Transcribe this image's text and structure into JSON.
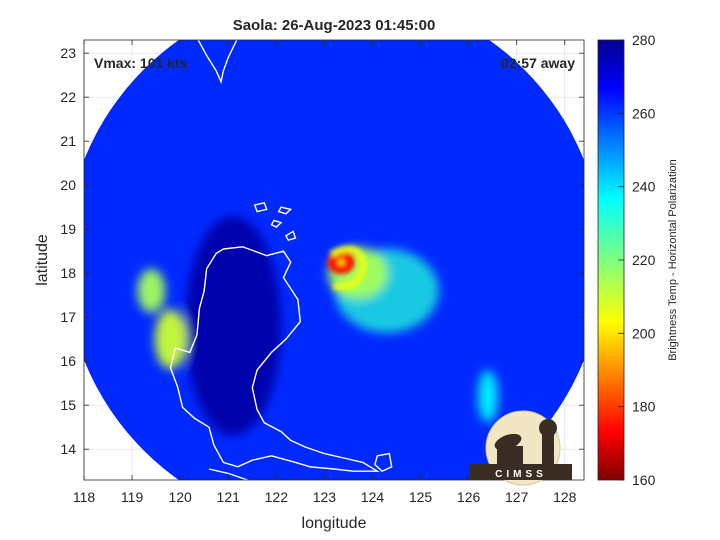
{
  "chart_data": {
    "type": "heatmap",
    "title": "Saola: 26-Aug-2023 01:45:00",
    "xlabel": "longitude",
    "ylabel": "latitude",
    "xlim": [
      118,
      128.4
    ],
    "ylim": [
      13.3,
      23.3
    ],
    "xticks": [
      118,
      119,
      120,
      121,
      122,
      123,
      124,
      125,
      126,
      127,
      128
    ],
    "yticks": [
      14,
      15,
      16,
      17,
      18,
      19,
      20,
      21,
      22,
      23
    ],
    "grid": true,
    "annotations": {
      "vmax": "Vmax: 101 kts",
      "time_away": "02:57 away"
    },
    "colorbar": {
      "label": "Brightness Temp - Horizontal Polarization",
      "range": [
        160,
        280
      ],
      "ticks": [
        160,
        180,
        200,
        220,
        240,
        260,
        280
      ],
      "colormap": "jet"
    },
    "swath": {
      "center": [
        123.2,
        18.3
      ],
      "radius_deg": 5.6
    },
    "storm_center": [
      123.35,
      18.25
    ],
    "features": [
      {
        "name": "eyewall",
        "lon": 123.35,
        "lat": 18.25,
        "value": 175
      },
      {
        "name": "inner-rainband",
        "lon": 123.7,
        "lat": 18.0,
        "value": 215
      },
      {
        "name": "outer-rainband",
        "lon": 124.3,
        "lat": 17.6,
        "value": 232
      },
      {
        "name": "luzon-west-coast-convection",
        "lon": 119.8,
        "lat": 16.5,
        "value": 210
      },
      {
        "name": "luzon-northwest-convection",
        "lon": 119.4,
        "lat": 17.6,
        "value": 215
      },
      {
        "name": "east-convection",
        "lon": 126.4,
        "lat": 15.2,
        "value": 238
      },
      {
        "name": "luzon-land",
        "lon": 121.1,
        "lat": 16.8,
        "value": 277
      },
      {
        "name": "background-ocean",
        "lon": 124.5,
        "lat": 20.5,
        "value": 262
      }
    ],
    "coastline": "Luzon, Taiwan, Babuyan Islands",
    "logo_text": "CIMSS"
  }
}
